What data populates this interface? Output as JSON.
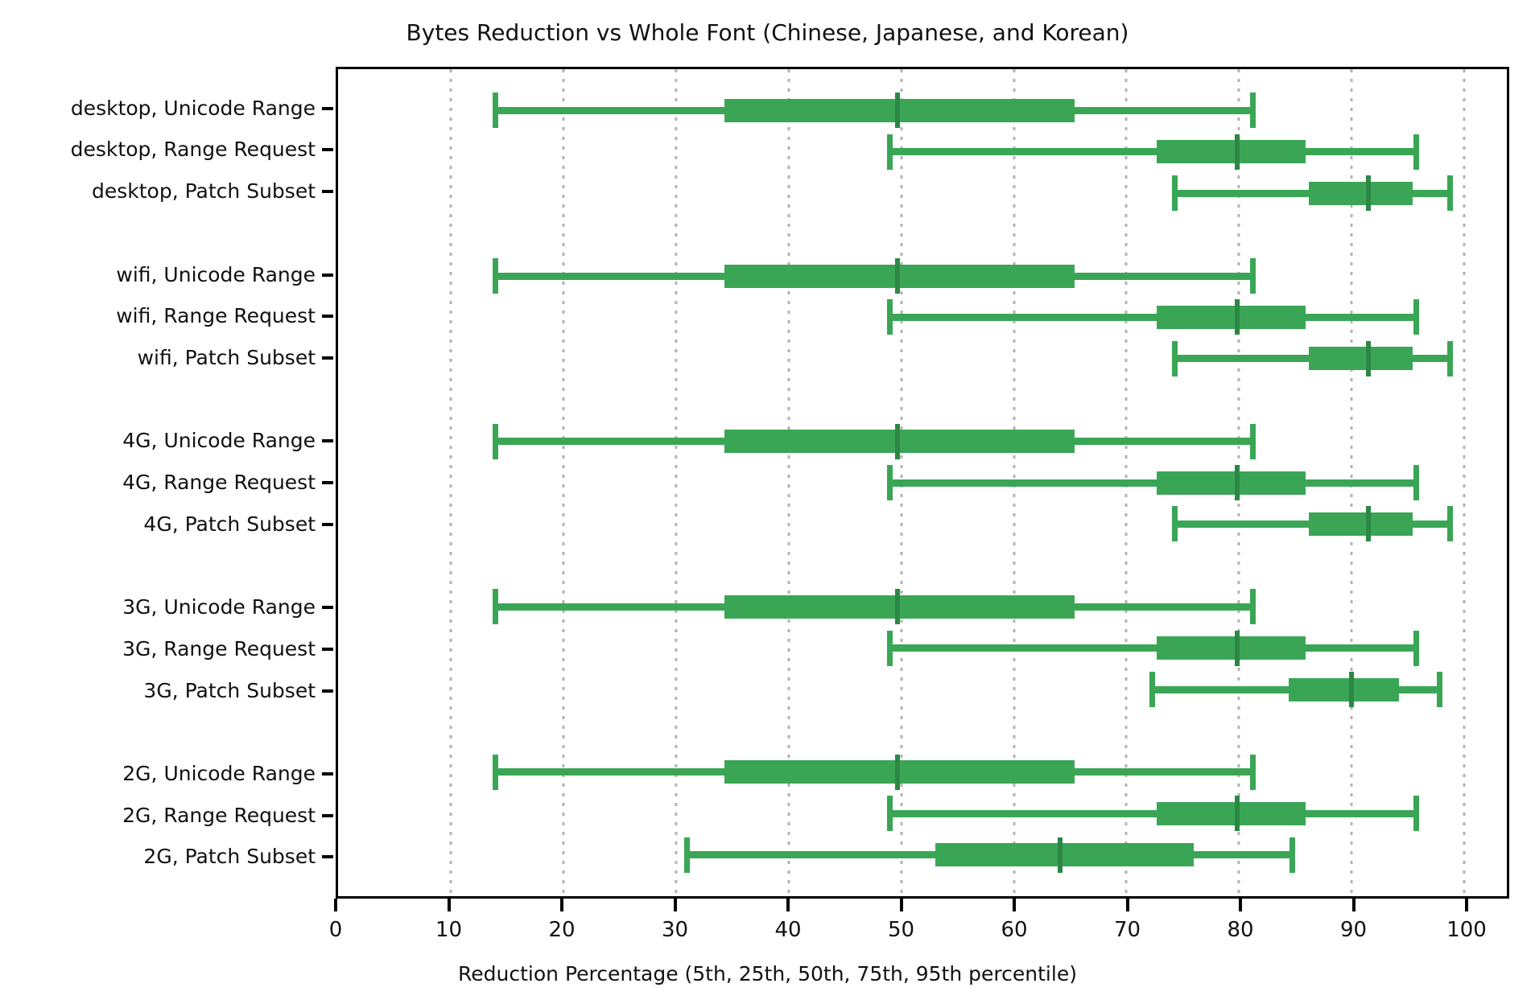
{
  "title": "Bytes Reduction vs Whole Font (Chinese, Japanese, and Korean)",
  "xlabel": "Reduction Percentage (5th, 25th, 50th, 75th, 95th percentile)",
  "colors": {
    "box_fill": "#3aa655",
    "median_line": "#2c8745",
    "gridline": "#b3b3b3",
    "axis": "#000000",
    "background": "#ffffff"
  },
  "chart_data": {
    "type": "boxplot",
    "orientation": "horizontal",
    "title": "Bytes Reduction vs Whole Font (Chinese, Japanese, and Korean)",
    "xlabel": "Reduction Percentage (5th, 25th, 50th, 75th, 95th percentile)",
    "percentile_labels": [
      "5th",
      "25th",
      "50th",
      "75th",
      "95th"
    ],
    "xlim": [
      0,
      103.77
    ],
    "x_ticks": [
      0,
      10,
      20,
      30,
      40,
      50,
      60,
      70,
      80,
      90,
      100
    ],
    "grid_values": [
      10,
      20,
      30,
      40,
      50,
      60,
      70,
      80,
      90,
      100
    ],
    "legend_position": "none",
    "grid": "dotted-vertical",
    "groups": [
      {
        "name": "desktop",
        "rows": [
          {
            "label": "desktop, Unicode Range",
            "strategy": "Unicode Range",
            "values": [
              14.0,
              34.3,
              49.7,
              65.4,
              81.2
            ]
          },
          {
            "label": "desktop, Range Request",
            "strategy": "Range Request",
            "values": [
              49.0,
              72.7,
              79.8,
              85.9,
              95.7
            ]
          },
          {
            "label": "desktop, Patch Subset",
            "strategy": "Patch Subset",
            "values": [
              74.3,
              86.2,
              91.5,
              95.4,
              98.7
            ]
          }
        ]
      },
      {
        "name": "wifi",
        "rows": [
          {
            "label": "wifi, Unicode Range",
            "strategy": "Unicode Range",
            "values": [
              14.0,
              34.3,
              49.7,
              65.4,
              81.2
            ]
          },
          {
            "label": "wifi, Range Request",
            "strategy": "Range Request",
            "values": [
              49.0,
              72.7,
              79.8,
              85.9,
              95.7
            ]
          },
          {
            "label": "wifi, Patch Subset",
            "strategy": "Patch Subset",
            "values": [
              74.3,
              86.2,
              91.5,
              95.4,
              98.7
            ]
          }
        ]
      },
      {
        "name": "4G",
        "rows": [
          {
            "label": "4G, Unicode Range",
            "strategy": "Unicode Range",
            "values": [
              14.0,
              34.3,
              49.7,
              65.4,
              81.2
            ]
          },
          {
            "label": "4G, Range Request",
            "strategy": "Range Request",
            "values": [
              49.0,
              72.7,
              79.8,
              85.9,
              95.7
            ]
          },
          {
            "label": "4G, Patch Subset",
            "strategy": "Patch Subset",
            "values": [
              74.3,
              86.2,
              91.5,
              95.4,
              98.7
            ]
          }
        ]
      },
      {
        "name": "3G",
        "rows": [
          {
            "label": "3G, Unicode Range",
            "strategy": "Unicode Range",
            "values": [
              14.0,
              34.3,
              49.7,
              65.4,
              81.2
            ]
          },
          {
            "label": "3G, Range Request",
            "strategy": "Range Request",
            "values": [
              49.0,
              72.7,
              79.8,
              85.9,
              95.7
            ]
          },
          {
            "label": "3G, Patch Subset",
            "strategy": "Patch Subset",
            "values": [
              72.3,
              84.4,
              90.0,
              94.2,
              97.8
            ]
          }
        ]
      },
      {
        "name": "2G",
        "rows": [
          {
            "label": "2G, Unicode Range",
            "strategy": "Unicode Range",
            "values": [
              14.0,
              34.3,
              49.7,
              65.4,
              81.2
            ]
          },
          {
            "label": "2G, Range Request",
            "strategy": "Range Request",
            "values": [
              49.0,
              72.7,
              79.8,
              85.9,
              95.7
            ]
          },
          {
            "label": "2G, Patch Subset",
            "strategy": "Patch Subset",
            "values": [
              31.0,
              53.0,
              64.1,
              76.0,
              84.7
            ]
          }
        ]
      }
    ]
  }
}
